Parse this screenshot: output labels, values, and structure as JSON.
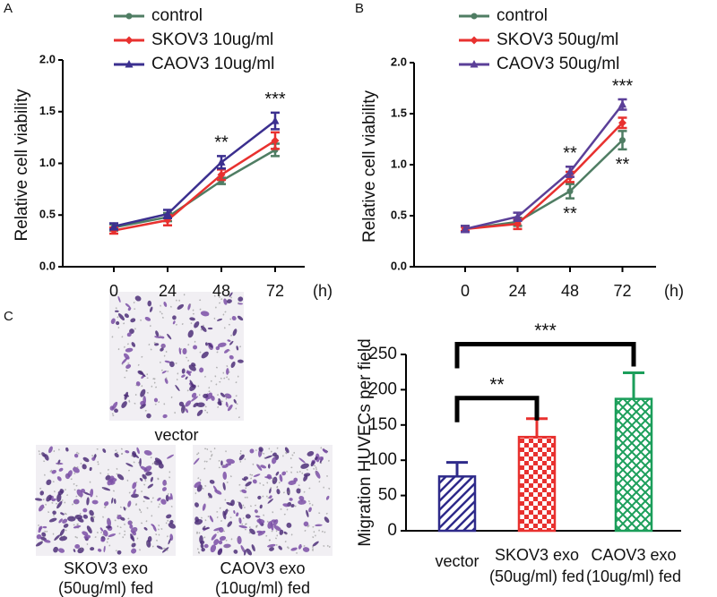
{
  "panels": [
    "A",
    "B",
    "C"
  ],
  "chart_data": [
    {
      "type": "line",
      "ylabel": "Relative cell viability",
      "xlabel": "(h)",
      "categories": [
        "0",
        "24",
        "48",
        "72"
      ],
      "ylim": [
        0,
        2
      ],
      "yticks": [
        {
          "value": 0,
          "label": "0.0"
        },
        {
          "value": 0.5,
          "label": "0.5"
        },
        {
          "value": 1,
          "label": "1.0"
        },
        {
          "value": 1.5,
          "label": "1.5"
        },
        {
          "value": 2,
          "label": "2.0"
        }
      ],
      "series": [
        {
          "name": "control",
          "color": "#4f7d63",
          "marker": "circle",
          "values": [
            0.38,
            0.48,
            0.83,
            1.13
          ],
          "errors": [
            0.03,
            0.04,
            0.03,
            0.06
          ]
        },
        {
          "name": "SKOV3 10ug/ml",
          "color": "#e8312f",
          "marker": "diamond",
          "values": [
            0.35,
            0.45,
            0.89,
            1.22
          ],
          "errors": [
            0.03,
            0.05,
            0.05,
            0.08
          ]
        },
        {
          "name": "CAOV3 10ug/ml",
          "color": "#3b2f8f",
          "marker": "triangle",
          "values": [
            0.39,
            0.51,
            1.01,
            1.41
          ],
          "errors": [
            0.03,
            0.04,
            0.06,
            0.08
          ]
        }
      ],
      "annotations": [
        {
          "category": 2,
          "label": "**",
          "position": "above"
        },
        {
          "category": 3,
          "label": "***",
          "position": "above"
        }
      ]
    },
    {
      "type": "line",
      "ylabel": "Relative cell viability",
      "xlabel": "(h)",
      "categories": [
        "0",
        "24",
        "48",
        "72"
      ],
      "ylim": [
        0,
        2
      ],
      "yticks": [
        {
          "value": 0,
          "label": "0.0"
        },
        {
          "value": 0.5,
          "label": "0.5"
        },
        {
          "value": 1,
          "label": "1.0"
        },
        {
          "value": 1.5,
          "label": "1.5"
        },
        {
          "value": 2,
          "label": "2.0"
        }
      ],
      "series": [
        {
          "name": "control",
          "color": "#4f7d63",
          "marker": "circle",
          "values": [
            0.37,
            0.44,
            0.74,
            1.24
          ],
          "errors": [
            0.03,
            0.04,
            0.07,
            0.09
          ]
        },
        {
          "name": "SKOV3 50ug/ml",
          "color": "#e8312f",
          "marker": "diamond",
          "values": [
            0.37,
            0.42,
            0.88,
            1.41
          ],
          "errors": [
            0.02,
            0.05,
            0.05,
            0.05
          ]
        },
        {
          "name": "CAOV3 50ug/ml",
          "color": "#5b3f98",
          "marker": "triangle",
          "values": [
            0.37,
            0.49,
            0.93,
            1.59
          ],
          "errors": [
            0.03,
            0.04,
            0.05,
            0.05
          ]
        }
      ],
      "annotations": [
        {
          "category": 2,
          "label": "**",
          "position": "above"
        },
        {
          "category": 2,
          "label": "**",
          "position": "below"
        },
        {
          "category": 3,
          "label": "***",
          "position": "above"
        },
        {
          "category": 3,
          "label": "**",
          "position": "below"
        }
      ]
    },
    {
      "type": "bar",
      "ylabel": "Migration HUVECs per field",
      "categories": [
        [
          "vector"
        ],
        [
          "SKOV3 exo",
          "(50ug/ml) fed"
        ],
        [
          "CAOV3 exo",
          "(10ug/ml) fed"
        ]
      ],
      "values": [
        77,
        133,
        187
      ],
      "errors": [
        20,
        26,
        37
      ],
      "colors": [
        "#2e2a8a",
        "#e8312f",
        "#1b9e5a"
      ],
      "ylim": [
        0,
        250
      ],
      "yticks": [
        0,
        50,
        100,
        150,
        200,
        250
      ],
      "comparisons": [
        {
          "between": [
            0,
            1
          ],
          "label": "**"
        },
        {
          "between": [
            0,
            2
          ],
          "label": "***"
        }
      ]
    }
  ],
  "micrographs": [
    [
      "vector"
    ],
    [
      "SKOV3 exo",
      "(50ug/ml) fed"
    ],
    [
      "CAOV3 exo",
      "(10ug/ml) fed"
    ]
  ]
}
